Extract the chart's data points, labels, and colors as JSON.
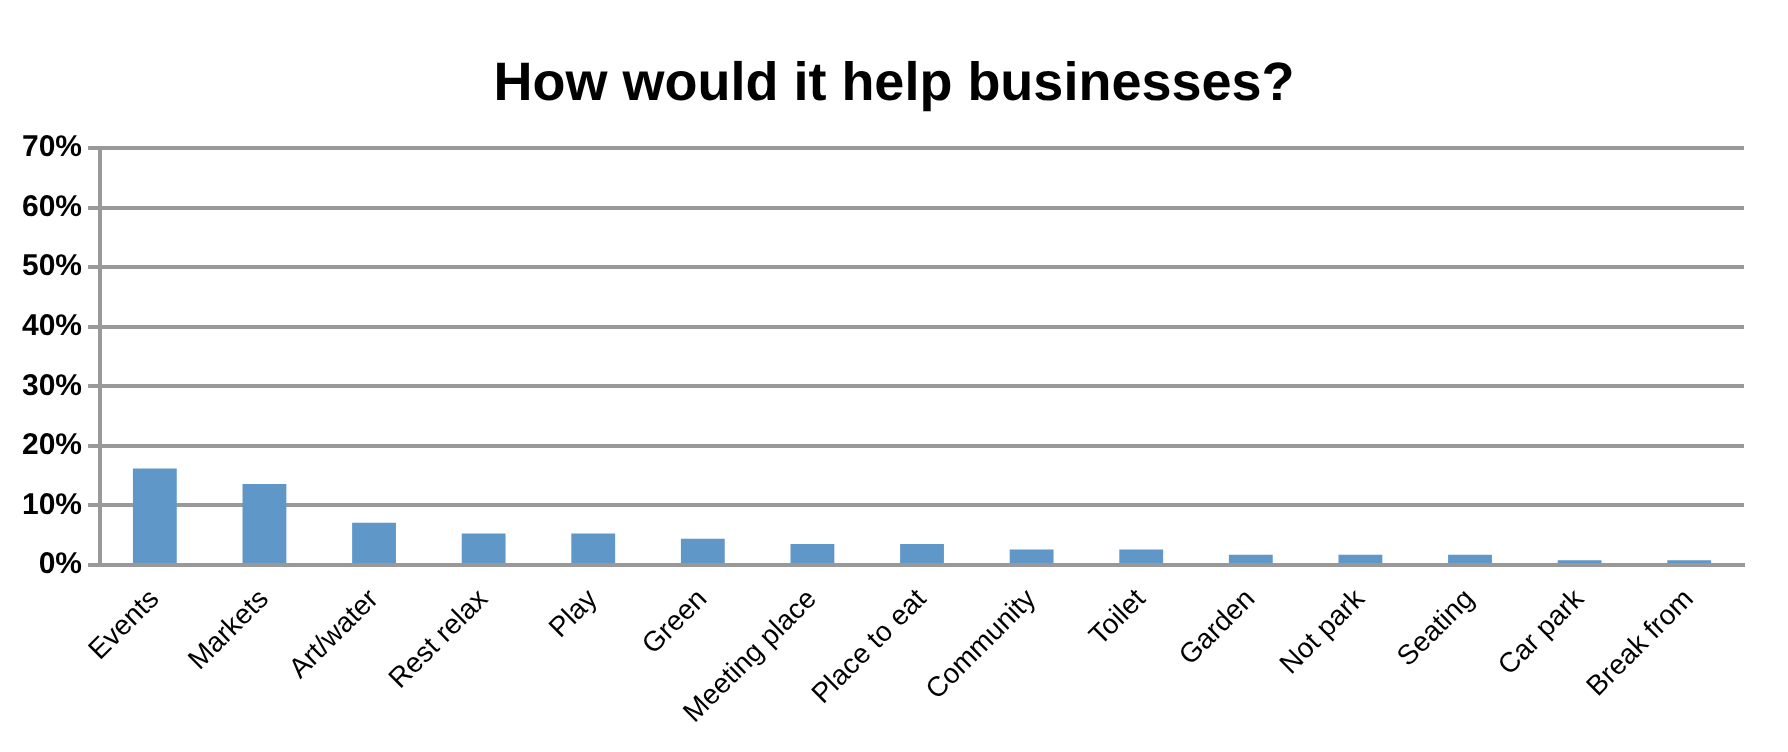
{
  "chart_data": {
    "type": "bar",
    "title": "How would it help businesses?",
    "categories": [
      "Events",
      "Markets",
      "Art/water",
      "Rest relax",
      "Play",
      "Green",
      "Meeting place",
      "Place to eat",
      "Community",
      "Toilet",
      "Garden",
      "Not park",
      "Seating",
      "Car park",
      "Break from"
    ],
    "values": [
      16.2,
      13.6,
      7.1,
      5.3,
      5.3,
      4.4,
      3.5,
      3.5,
      2.6,
      2.6,
      1.7,
      1.7,
      1.7,
      0.8,
      0.8
    ],
    "color": "#6097c9",
    "ylim": [
      0,
      70
    ],
    "yticks": [
      {
        "value": 0,
        "label": "0%"
      },
      {
        "value": 10,
        "label": "10%"
      },
      {
        "value": 20,
        "label": "20%"
      },
      {
        "value": 30,
        "label": "30%"
      },
      {
        "value": 40,
        "label": "40%"
      },
      {
        "value": 50,
        "label": "50%"
      },
      {
        "value": 60,
        "label": "60%"
      },
      {
        "value": 70,
        "label": "70%"
      }
    ],
    "grid": "y",
    "legend": false
  }
}
